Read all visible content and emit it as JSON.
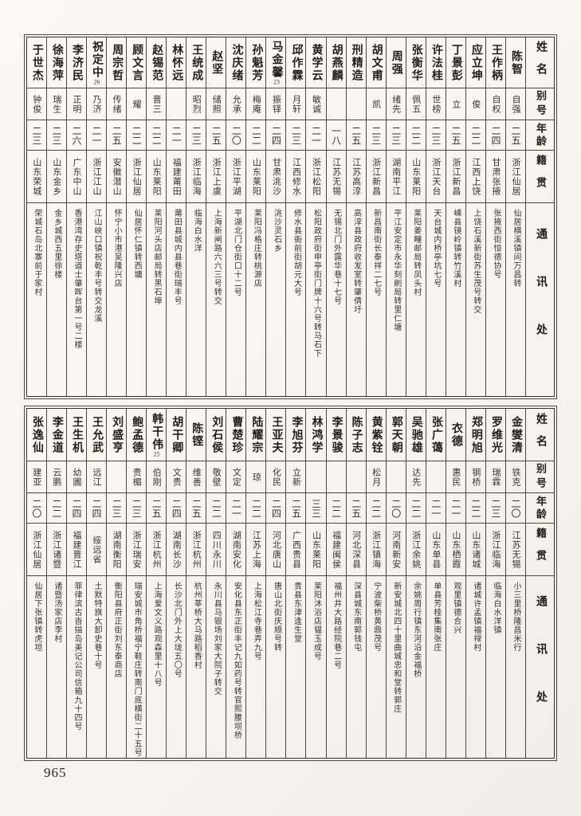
{
  "page": {
    "number": "965"
  },
  "headers": {
    "name": "姓名",
    "alias": "别号",
    "age": "年龄",
    "native": "籍贯",
    "address": "通讯处"
  },
  "tables": [
    {
      "persons": [
        {
          "name": "陈智",
          "fn": "",
          "alias": "自强",
          "age": "二五",
          "native": "浙江仙居",
          "address": "仙居横溪镇间万昌转"
        },
        {
          "name": "王作柄",
          "fn": "",
          "alias": "自权",
          "age": "二四",
          "native": "甘肃张掖",
          "address": "张掖西街恒德协号"
        },
        {
          "name": "应立坤",
          "fn": "",
          "alias": "俊",
          "age": "二二",
          "native": "江西上饶",
          "address": "上饶石溪新街苏生茂号转交"
        },
        {
          "name": "丁景彭",
          "fn": "",
          "alias": "立",
          "age": "二五",
          "native": "浙江新昌",
          "address": "嵊县镜岭镇转竹溪村"
        },
        {
          "name": "许法桂",
          "fn": "",
          "alias": "世榜",
          "age": "二三",
          "native": "浙江天台",
          "address": "天台城内桥亭坑七号"
        },
        {
          "name": "张衡华",
          "fn": "",
          "alias": "佩五",
          "age": "二二",
          "native": "山东莱阳",
          "address": "莱阳姜疃邮局转凤头村"
        },
        {
          "name": "周强",
          "fn": "",
          "alias": "绪先",
          "age": "二三",
          "native": "湖南平江",
          "address": "平江安定市永华刻刷局转里仁塘"
        },
        {
          "name": "胡文甫",
          "fn": "",
          "alias": "凯",
          "age": "二三",
          "native": "浙江新昌",
          "address": "新昌南街长泰祥二七号"
        },
        {
          "name": "刑精造",
          "fn": "",
          "alias": "",
          "age": "二五",
          "native": "江苏高淳",
          "address": "高淳县政府收发室转肇倩圩"
        },
        {
          "name": "胡燕麟",
          "fn": "",
          "alias": "",
          "age": "一八",
          "native": "江苏无锡",
          "address": "无锡北门外露华巷十七号"
        },
        {
          "name": "黄学云",
          "fn": "",
          "alias": "敏诚",
          "age": "二一",
          "native": "浙江松阳",
          "address": "松阳政府街申亭街门牌十六号转马石下"
        },
        {
          "name": "邱作霖",
          "fn": "",
          "alias": "月轩",
          "age": "二三",
          "native": "江西修水",
          "address": "修水县衙前街胡元大号"
        },
        {
          "name": "马金馨",
          "fn": "23",
          "alias": "振铎",
          "age": "二四",
          "native": "甘肃洮沙",
          "address": "洮沙灵石乡"
        },
        {
          "name": "孙魁芳",
          "fn": "",
          "alias": "梅庵",
          "age": "二二",
          "native": "山东莱阳",
          "address": "莱阳冯格庄转桃源店"
        },
        {
          "name": "沈庆绪",
          "fn": "",
          "alias": "允承",
          "age": "二〇",
          "native": "浙江平湖",
          "address": "平湖北门仓街口十二号"
        },
        {
          "name": "赵坚",
          "fn": "",
          "alias": "储照",
          "age": "二五",
          "native": "浙江上虞",
          "address": "上海新闸路六六三号转交"
        },
        {
          "name": "王统成",
          "fn": "",
          "alias": "昭烈",
          "age": "二三",
          "native": "浙江临海",
          "address": "临海白水洋"
        },
        {
          "name": "林怀远",
          "fn": "",
          "alias": "",
          "age": "二一",
          "native": "福建莆田",
          "address": "莆田县城内县巷街瑞丰号"
        },
        {
          "name": "赵锡范",
          "fn": "",
          "alias": "晋三",
          "age": "二二",
          "native": "山东莱阳",
          "address": "莱阳河头店邮局转黑石埠"
        },
        {
          "name": "顾文言",
          "fn": "",
          "alias": "耀",
          "age": "二二",
          "native": "浙江仙居",
          "address": "仙居怀仁镇转西墉"
        },
        {
          "name": "周宗哲",
          "fn": "",
          "alias": "传绪",
          "age": "二五",
          "native": "安徽潜山",
          "address": "怀宁小市港吴隆兴店"
        },
        {
          "name": "祝定中",
          "fn": "26",
          "alias": "乃济",
          "age": "二一",
          "native": "浙江江山",
          "address": "江山峡口镇祝乾丰号转交龙溪"
        },
        {
          "name": "李济民",
          "fn": "",
          "alias": "正明",
          "age": "二六",
          "native": "广东中山",
          "address": "香港湾存史塔道士肇晖台第一号二楼"
        },
        {
          "name": "徐海萍",
          "fn": "",
          "alias": "瑞生",
          "age": "二三",
          "native": "山东金乡",
          "address": "金乡城西五里徐楼"
        },
        {
          "name": "于世杰",
          "fn": "",
          "alias": "钟俊",
          "age": "二三",
          "native": "山东荣城",
          "address": "荣城石岛北寨前于家村"
        }
      ]
    },
    {
      "persons": [
        {
          "name": "金燮清",
          "fn": "",
          "alias": "铁克",
          "age": "二〇",
          "native": "江苏无锡",
          "address": "小三里桥隆昌米行"
        },
        {
          "name": "罗维光",
          "fn": "",
          "alias": "瑞霖",
          "age": "二三",
          "native": "浙江临海",
          "address": "临海白水洋镇"
        },
        {
          "name": "郑明旭",
          "fn": "",
          "alias": "钢桥",
          "age": "二二",
          "native": "山东诸城",
          "address": "诸城许孟镇福禄村"
        },
        {
          "name": "衣德",
          "fn": "",
          "alias": "惠民",
          "age": "二一",
          "native": "山东栖霞",
          "address": "观里镇德合兴"
        },
        {
          "name": "张广蔼",
          "fn": "",
          "alias": "",
          "age": "二一",
          "native": "山东单县",
          "address": "单县芳桂集南张庄"
        },
        {
          "name": "吴驰雄",
          "fn": "",
          "alias": "达先",
          "age": "二二",
          "native": "浙江余姚",
          "address": "余姚周行镇东河沿金福桥"
        },
        {
          "name": "郭天朝",
          "fn": "",
          "alias": "",
          "age": "二〇",
          "native": "河南新安",
          "address": "新安城北四十里曲城忠和堂转郭庄"
        },
        {
          "name": "黄紫铨",
          "fn": "",
          "alias": "松月",
          "age": "二二",
          "native": "浙江镇海",
          "address": "宁波柴桥黄鼎茂号"
        },
        {
          "name": "陈子志",
          "fn": "",
          "alias": "",
          "age": "二五",
          "native": "河北深县",
          "address": "深县城东南郭钱屯"
        },
        {
          "name": "李景骏",
          "fn": "",
          "alias": "",
          "age": "二二",
          "native": "福建闽侯",
          "address": "福州井大路经院巷二号"
        },
        {
          "name": "林鸿学",
          "fn": "",
          "alias": "",
          "age": "三三",
          "native": "山东莱阳",
          "address": "莱阳沐浴店韫玉成号"
        },
        {
          "name": "李旭芬",
          "fn": "",
          "alias": "立新",
          "age": "二五",
          "native": "广西贵县",
          "address": "贵县东津逢生堂"
        },
        {
          "name": "王亚夫",
          "fn": "",
          "alias": "化民",
          "age": "二四",
          "native": "河北唐山",
          "address": "唐山北街庆顺号转"
        },
        {
          "name": "陆耀宗",
          "fn": "",
          "alias": "琼",
          "age": "二二",
          "native": "江苏上海",
          "address": "上海松江寺巷弄九号"
        },
        {
          "name": "曹楚珍",
          "fn": "",
          "alias": "文定",
          "age": "二一",
          "native": "湖南安化",
          "address": "安化县东正街丰记九如药号转官熙腰坝桥"
        },
        {
          "name": "刘石侯",
          "fn": "",
          "alias": "敬壁",
          "age": "二二",
          "native": "四川永川",
          "address": "永川县马银场刘家大院子转交"
        },
        {
          "name": "陈铿",
          "fn": "",
          "alias": "维善",
          "age": "二五",
          "native": "浙江杭州",
          "address": "杭州莘桥大马路稻香村"
        },
        {
          "name": "胡干卿",
          "fn": "",
          "alias": "文贵",
          "age": "二四",
          "native": "湖南长沙",
          "address": "长沙北门外上大垅五〇号"
        },
        {
          "name": "韩干伟",
          "fn": "25",
          "alias": "伯刚",
          "age": "二五",
          "native": "浙江杭州",
          "address": "上海爱文义路观森里十八号"
        },
        {
          "name": "鲍孟德",
          "fn": "",
          "alias": "贵楣",
          "age": "二三",
          "native": "浙江瑞安",
          "address": "瑞安城市角桥福宁鞋庄转南门底横街二十五号"
        },
        {
          "name": "刘盛亨",
          "fn": "",
          "alias": "",
          "age": "二三",
          "native": "湖南衡阳",
          "address": "衡阳县府正街刘东泰商店"
        },
        {
          "name": "王允武",
          "fn": "",
          "alias": "远江",
          "age": "二四",
          "native": "绥远省",
          "address": "土默特旗大卸史巷十号"
        },
        {
          "name": "王生机",
          "fn": "",
          "alias": "幼圃",
          "age": "二四",
          "native": "福建晋江",
          "address": "菲律滨古沓描岛美记公司信箱九十四号"
        },
        {
          "name": "李金道",
          "fn": "",
          "alias": "云鹏",
          "age": "二二",
          "native": "浙江诸暨",
          "address": "诸暨汤家店李村"
        },
        {
          "name": "张逸仙",
          "fn": "",
          "alias": "建亚",
          "age": "二〇",
          "native": "浙江仙居",
          "address": "仙居下张镇转虎坦"
        }
      ]
    }
  ]
}
